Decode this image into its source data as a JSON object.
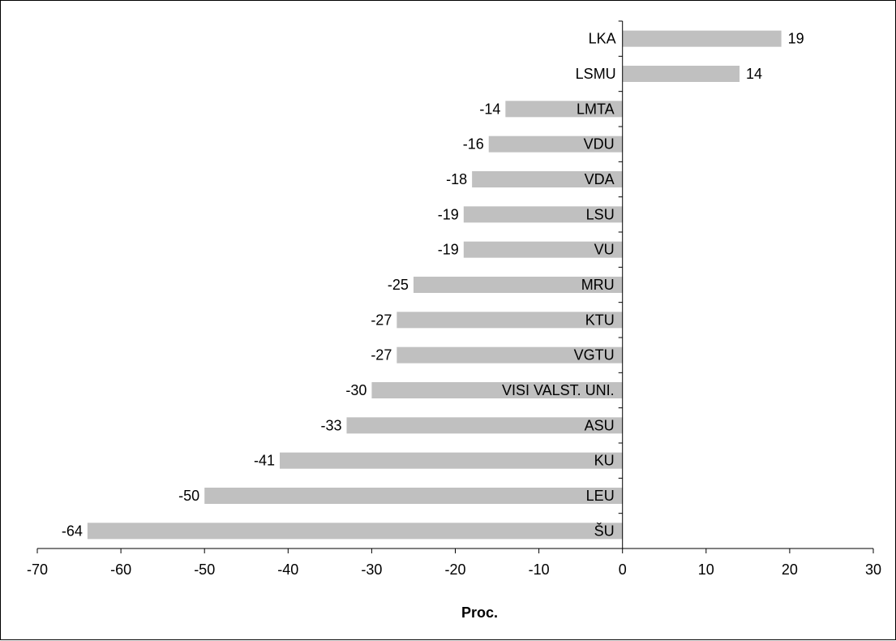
{
  "chart_data": {
    "type": "bar",
    "orientation": "horizontal",
    "categories": [
      "LKA",
      "LSMU",
      "LMTA",
      "VDU",
      "VDA",
      "LSU",
      "VU",
      "MRU",
      "KTU",
      "VGTU",
      "VISI VALST. UNI.",
      "ASU",
      "KU",
      "LEU",
      "ŠU"
    ],
    "values": [
      19,
      14,
      -14,
      -16,
      -18,
      -19,
      -19,
      -25,
      -27,
      -27,
      -30,
      -33,
      -41,
      -50,
      -64
    ],
    "value_labels": [
      "19",
      "14",
      "-14",
      "-16",
      "-18",
      "-19",
      "-19",
      "-25",
      "-27",
      "-27",
      "-30",
      "-33",
      "-41",
      "-50",
      "-64"
    ],
    "xlabel": "Proc.",
    "xlim": [
      -70,
      30
    ],
    "xticks": [
      -70,
      -60,
      -50,
      -40,
      -30,
      -20,
      -10,
      0,
      10,
      20,
      30
    ],
    "xtick_labels": [
      "-70",
      "-60",
      "-50",
      "-40",
      "-30",
      "-20",
      "-10",
      "0",
      "10",
      "20",
      "30"
    ],
    "bar_color": "#c0c0c0",
    "grid": false,
    "legend": "none"
  }
}
